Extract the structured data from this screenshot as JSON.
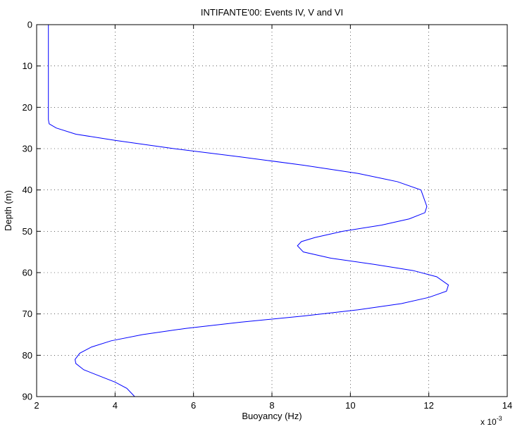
{
  "chart_data": {
    "type": "line",
    "title": "INTIFANTE'00: Events IV, V and VI",
    "xlabel": "Buoyancy (Hz)",
    "ylabel": "Depth (m)",
    "x_multiplier_label": "x 10",
    "x_multiplier_exponent": "-3",
    "xlim": [
      2,
      14
    ],
    "ylim": [
      0,
      90
    ],
    "y_reversed": true,
    "grid": true,
    "grid_style": "dotted",
    "x_ticks": [
      "2",
      "4",
      "6",
      "8",
      "10",
      "12",
      "14"
    ],
    "y_ticks": [
      "0",
      "10",
      "20",
      "30",
      "40",
      "50",
      "60",
      "70",
      "80",
      "90"
    ],
    "line_color": "#0000ff",
    "series": [
      {
        "x": [
          2.3,
          2.3,
          2.3,
          2.3,
          2.32,
          2.5,
          3.0,
          4.0,
          5.5,
          7.2,
          8.8,
          10.2,
          11.2,
          11.8,
          11.95,
          11.9,
          11.5,
          10.8,
          9.8,
          9.1,
          8.75,
          8.65,
          8.8,
          9.5,
          10.6,
          11.6,
          12.2,
          12.5,
          12.45,
          12.0,
          11.3,
          10.2,
          8.8,
          7.2,
          5.8,
          4.7,
          3.9,
          3.4,
          3.1,
          2.98,
          3.0,
          3.2,
          3.6,
          4.0,
          4.3,
          4.5
        ],
        "y": [
          0,
          10,
          20,
          23,
          24,
          25,
          26.5,
          28,
          30,
          32,
          34,
          36,
          38,
          40,
          44,
          45.5,
          47,
          48.5,
          50,
          51.5,
          52.5,
          53.5,
          55,
          56.5,
          58,
          59.5,
          61,
          63,
          64.5,
          66,
          67.5,
          69,
          70.5,
          72,
          73.5,
          75,
          76.5,
          78,
          79.5,
          81,
          82,
          83.5,
          85,
          86.5,
          88,
          90
        ]
      }
    ]
  }
}
